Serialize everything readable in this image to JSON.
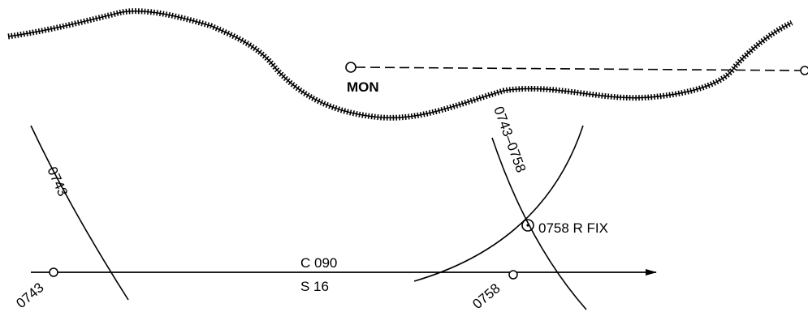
{
  "diagram": {
    "colors": {
      "ink": "#000000",
      "background": "#ffffff"
    },
    "landmark": {
      "label": "MON"
    },
    "lines_of_position": {
      "earlier_lop_label": "0743",
      "advanced_lop_label": "0743–0758",
      "course_label": "C 090",
      "speed_label": "S 16"
    },
    "positions": {
      "start_dr_label": "0743",
      "end_dr_label": "0758",
      "fix_label": "0758 R FIX"
    }
  }
}
